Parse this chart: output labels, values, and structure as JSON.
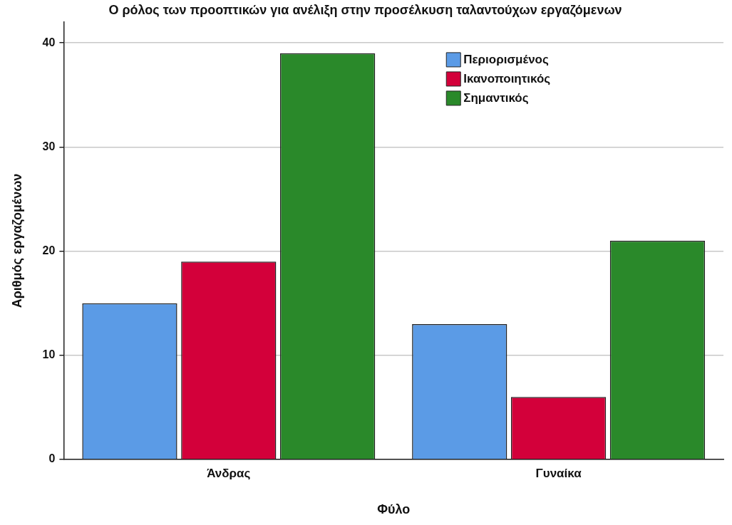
{
  "chart_data": {
    "type": "bar",
    "title": "Ο ρόλος των προοπτικών για ανέλιξη στην προσέλκυση ταλαντούχων εργαζόμενων",
    "xlabel": "Φύλο",
    "ylabel": "Αριθμός εργαζομένων",
    "categories": [
      "Άνδρας",
      "Γυναίκα"
    ],
    "series": [
      {
        "name": "Περιορισμένος",
        "color": "#5b9be6",
        "values": [
          15,
          13
        ]
      },
      {
        "name": "Ικανοποιητικός",
        "color": "#d3003a",
        "values": [
          19,
          6
        ]
      },
      {
        "name": "Σημαντικός",
        "color": "#2a892a",
        "values": [
          39,
          21
        ]
      }
    ],
    "ylim": [
      0,
      42
    ],
    "yticks": [
      0,
      10,
      20,
      30,
      40
    ],
    "grid": "y",
    "legend": "top right"
  }
}
